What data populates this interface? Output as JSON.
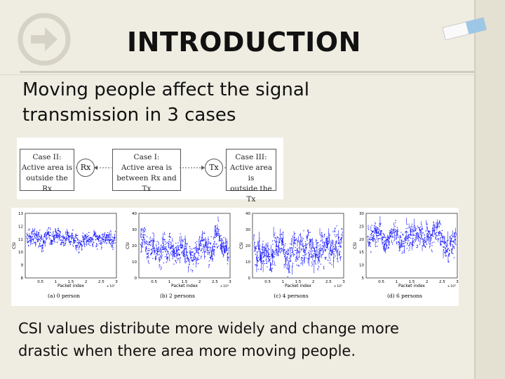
{
  "slide": {
    "title": "INTRODUCTION",
    "text1_line1": "Moving people affect  the signal",
    "text1_line2": "transmission in 3 cases",
    "text2_line1": "CSI values distribute more widely and change more",
    "text2_line2": "drastic when there area more moving people."
  },
  "diagram": {
    "case2": [
      "Case II:",
      "Active area is",
      "outside the Rx"
    ],
    "case1": [
      "Case I:",
      "Active area is",
      "between Rx and Tx"
    ],
    "case3": [
      "Case III:",
      "Active area is",
      "outside the Tx"
    ],
    "rx": "Rx",
    "tx": "Tx"
  },
  "icons": {
    "back": "arrow-right-icon",
    "decor": "eraser-icon"
  },
  "colors": {
    "signal": "#1a1aff"
  },
  "chart_data": [
    {
      "type": "scatter",
      "caption": "(a) 0 person",
      "xlabel": "Packet index",
      "ylabel": "CSI",
      "xticks": [
        "0.5",
        "1",
        "1.5",
        "2",
        "2.5",
        "3"
      ],
      "xexp": "x 10³",
      "yticks": [
        "13",
        "12",
        "11",
        "10",
        "9",
        "8"
      ],
      "ylim": [
        8,
        13
      ],
      "center": 11,
      "spread": 0.6
    },
    {
      "type": "scatter",
      "caption": "(b) 2 persons",
      "xlabel": "Packet index",
      "ylabel": "CSI",
      "xticks": [
        "0.5",
        "1",
        "1.5",
        "2",
        "2.5",
        "3"
      ],
      "xexp": "x 10³",
      "yticks": [
        "40",
        "30",
        "20",
        "10",
        "0"
      ],
      "ylim": [
        0,
        40
      ],
      "center": 20,
      "spread": 9
    },
    {
      "type": "scatter",
      "caption": "(c) 4 persons",
      "xlabel": "Packet index",
      "ylabel": "CSI",
      "xticks": [
        "0.5",
        "1",
        "1.5",
        "2",
        "2.5",
        "3"
      ],
      "xexp": "x 10³",
      "yticks": [
        "40",
        "30",
        "20",
        "10",
        "0"
      ],
      "ylim": [
        0,
        40
      ],
      "center": 18,
      "spread": 11
    },
    {
      "type": "scatter",
      "caption": "(d) 6 persons",
      "xlabel": "Packet index",
      "ylabel": "CSI",
      "xticks": [
        "0.5",
        "1",
        "1.5",
        "2",
        "2.5",
        "3"
      ],
      "xexp": "x 10³",
      "yticks": [
        "30",
        "25",
        "20",
        "15",
        "10",
        "5"
      ],
      "ylim": [
        5,
        30
      ],
      "center": 21,
      "spread": 5
    }
  ]
}
